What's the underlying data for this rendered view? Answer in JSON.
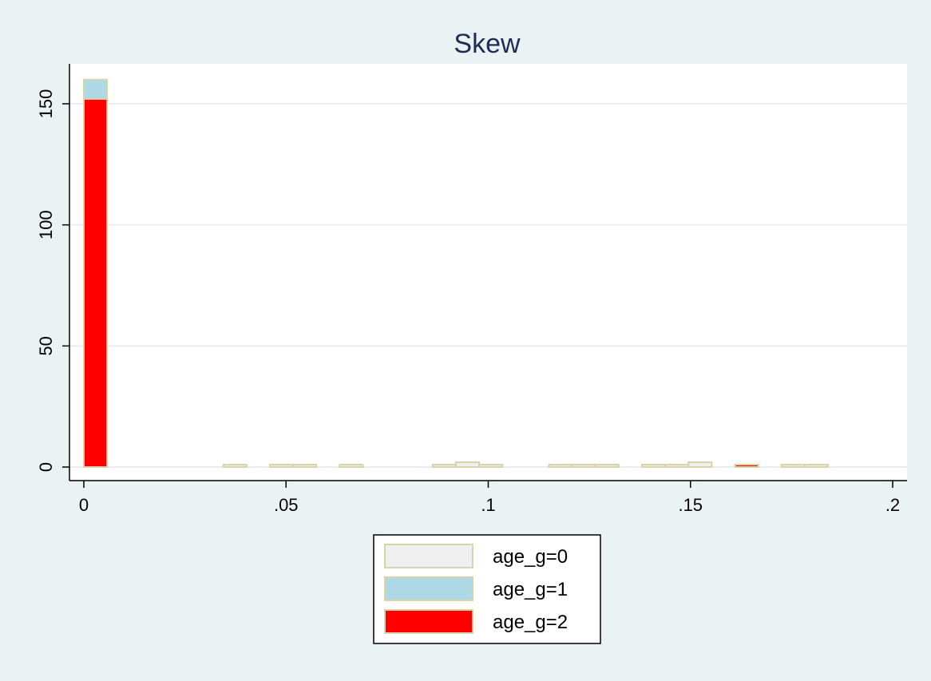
{
  "chart_data": {
    "type": "bar",
    "title": "Skew",
    "xlabel": "",
    "ylabel": "",
    "xlim": [
      0,
      0.2
    ],
    "ylim": [
      0,
      160
    ],
    "x_ticks": [
      {
        "value": 0,
        "label": "0"
      },
      {
        "value": 0.05,
        "label": ".05"
      },
      {
        "value": 0.1,
        "label": ".1"
      },
      {
        "value": 0.15,
        "label": ".15"
      },
      {
        "value": 0.2,
        "label": ".2"
      }
    ],
    "y_ticks": [
      {
        "value": 0,
        "label": "0"
      },
      {
        "value": 50,
        "label": "50"
      },
      {
        "value": 100,
        "label": "100"
      },
      {
        "value": 150,
        "label": "150"
      }
    ],
    "grid": true,
    "bin_width": 0.00575,
    "bin_starts": [
      0,
      0.00575,
      0.0115,
      0.01725,
      0.023,
      0.02875,
      0.0345,
      0.04025,
      0.046,
      0.05175,
      0.0575,
      0.06325,
      0.069,
      0.07475,
      0.0805,
      0.08625,
      0.092,
      0.09775,
      0.1035,
      0.10925,
      0.115,
      0.12075,
      0.1265,
      0.13225,
      0.138,
      0.14375,
      0.1495,
      0.15525,
      0.161,
      0.16675,
      0.1725,
      0.17825
    ],
    "series": [
      {
        "name": "age_g=0",
        "color": "#efefef",
        "values": [
          0,
          0,
          0,
          0,
          0,
          0,
          1,
          0,
          1,
          1,
          0,
          1,
          0,
          0,
          0,
          1,
          2,
          1,
          0,
          0,
          1,
          1,
          1,
          0,
          1,
          1,
          2,
          0,
          0,
          0,
          1,
          1
        ]
      },
      {
        "name": "age_g=1",
        "color": "#add8e6",
        "values": [
          160,
          0,
          0,
          0,
          0,
          0,
          0,
          0,
          0,
          0,
          0,
          0,
          0,
          0,
          0,
          0,
          0,
          0,
          0,
          0,
          0,
          0,
          0,
          0,
          0,
          0,
          0,
          0,
          0,
          0,
          0,
          0
        ]
      },
      {
        "name": "age_g=2",
        "color": "#ff0000",
        "values": [
          152,
          0,
          0,
          0,
          0,
          0,
          0,
          0,
          0,
          0,
          0,
          0,
          0,
          0,
          0,
          0,
          0,
          0,
          0,
          0,
          0,
          0,
          0,
          0,
          0,
          0,
          0,
          0,
          1,
          0,
          0,
          0
        ]
      }
    ],
    "legend_position": "bottom-center"
  },
  "colors": {
    "page_background": "#eaf2f3",
    "plot_background": "#ffffff",
    "gridline": "#e6eef0",
    "bar_outline": "#d8d3a8",
    "title": "#1e2d55",
    "axis": "#000000"
  }
}
